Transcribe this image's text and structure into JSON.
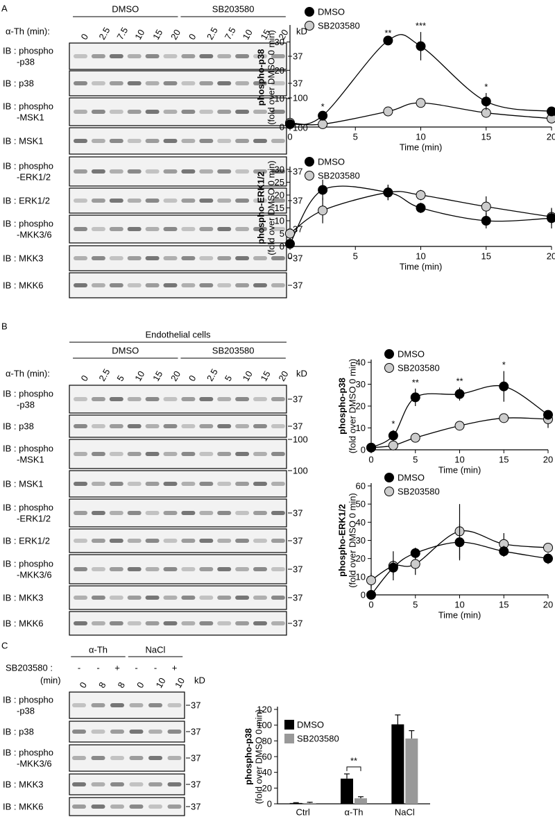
{
  "figure": {
    "panels": [
      {
        "letter": "A",
        "groups": [
          "DMSO",
          "SB203580"
        ],
        "time_label": "α-Th (min):",
        "kd_label": "kD",
        "lanes": [
          "0",
          "2.5",
          "7.5",
          "10",
          "15",
          "20",
          "0",
          "2.5",
          "7.5",
          "10",
          "15",
          "20"
        ],
        "rows": [
          {
            "label": [
              "IB : phospho",
              "-p38"
            ],
            "marker": "37"
          },
          {
            "label": [
              "IB : p38"
            ],
            "marker": "37"
          },
          {
            "label": [
              "IB : phospho",
              "-MSK1"
            ],
            "marker": "100"
          },
          {
            "label": [
              "IB : MSK1"
            ],
            "marker": "100"
          },
          {
            "label": [
              "IB : phospho",
              "-ERK1/2"
            ],
            "marker": "37"
          },
          {
            "label": [
              "IB : ERK1/2"
            ],
            "marker": "37"
          },
          {
            "label": [
              "IB : phospho",
              "-MKK3/6"
            ],
            "marker": "37"
          },
          {
            "label": [
              "IB : MKK3"
            ],
            "marker": "37"
          },
          {
            "label": [
              "IB : MKK6"
            ],
            "marker": "37"
          }
        ]
      },
      {
        "letter": "B",
        "header": "Endothelial cells",
        "groups": [
          "DMSO",
          "SB203580"
        ],
        "time_label": "α-Th (min):",
        "kd_label": "kD",
        "lanes": [
          "0",
          "2.5",
          "5",
          "10",
          "15",
          "20",
          "0",
          "2.5",
          "5",
          "10",
          "15",
          "20"
        ],
        "rows": [
          {
            "label": [
              "IB : phospho",
              "-p38"
            ],
            "marker": "37"
          },
          {
            "label": [
              "IB : p38"
            ],
            "marker": "37"
          },
          {
            "label": [
              "IB : phospho",
              "-MSK1"
            ],
            "marker": "100"
          },
          {
            "label": [
              "IB : MSK1"
            ],
            "marker": "100"
          },
          {
            "label": [
              "IB : phospho",
              "-ERK1/2"
            ],
            "marker": "37"
          },
          {
            "label": [
              "IB : ERK1/2"
            ],
            "marker": "37"
          },
          {
            "label": [
              "IB : phospho",
              "-MKK3/6"
            ],
            "marker": "37"
          },
          {
            "label": [
              "IB : MKK3"
            ],
            "marker": "37"
          },
          {
            "label": [
              "IB : MKK6"
            ],
            "marker": "37"
          }
        ]
      },
      {
        "letter": "C",
        "groups": [
          "α-Th",
          "NaCl"
        ],
        "treatment_label": "SB203580 :",
        "time_label": "(min)",
        "kd_label": "kD",
        "treatment": [
          "-",
          "-",
          "+",
          "-",
          "-",
          "+"
        ],
        "lanes": [
          "0",
          "8",
          "8",
          "0",
          "10",
          "10"
        ],
        "rows": [
          {
            "label": [
              "IB : phospho",
              "-p38"
            ],
            "marker": "37"
          },
          {
            "label": [
              "IB : p38"
            ],
            "marker": "37"
          },
          {
            "label": [
              "IB : phospho",
              "-MKK3/6"
            ],
            "marker": "37"
          },
          {
            "label": [
              "IB : MKK3"
            ],
            "marker": "37"
          },
          {
            "label": [
              "IB : MKK6"
            ],
            "marker": "37"
          }
        ]
      }
    ]
  },
  "chart_data": [
    {
      "type": "line",
      "ylabel": "phospho-p38",
      "ylabel_note": "(fold over DMSO 0 min)",
      "xlabel": "Time (min)",
      "x": [
        0,
        2.5,
        7.5,
        10,
        15,
        20
      ],
      "xlim": [
        0,
        20
      ],
      "xticks": [
        0,
        5,
        10,
        15,
        20
      ],
      "ylim": [
        0,
        35
      ],
      "yticks": [
        0,
        10,
        20,
        30
      ],
      "legend": "upper left",
      "series": [
        {
          "name": "DMSO",
          "color": "#000000",
          "values": [
            1,
            4,
            30.5,
            28.5,
            9,
            5.5
          ],
          "errors": [
            0.5,
            1,
            0.5,
            5,
            3,
            0.5
          ]
        },
        {
          "name": "SB203580",
          "color": "#cccccc",
          "values": [
            1.5,
            1,
            5.5,
            8.5,
            5,
            3
          ]
        }
      ],
      "annotations": [
        {
          "text": "*",
          "x": 2.5
        },
        {
          "text": "**",
          "x": 7.5
        },
        {
          "text": "***",
          "x": 10
        },
        {
          "text": "*",
          "x": 15
        }
      ]
    },
    {
      "type": "line",
      "ylabel": "phospho-ERK1/2",
      "ylabel_note": "(fold over DMSO 0 min)",
      "xlabel": "Time (min)",
      "x": [
        0,
        2.5,
        7.5,
        10,
        15,
        20
      ],
      "xlim": [
        0,
        20
      ],
      "xticks": [
        0,
        5,
        10,
        15,
        20
      ],
      "ylim": [
        0,
        30
      ],
      "yticks": [
        0,
        5,
        10,
        15,
        20,
        25,
        30
      ],
      "legend": "upper left",
      "series": [
        {
          "name": "DMSO",
          "color": "#000000",
          "values": [
            1,
            22,
            21,
            15,
            10,
            11
          ],
          "errors": [
            1,
            4,
            3,
            2,
            3,
            4
          ]
        },
        {
          "name": "SB203580",
          "color": "#cccccc",
          "values": [
            5,
            14,
            21,
            20,
            15.5,
            11.5
          ],
          "errors": [
            2,
            5,
            3,
            2,
            4,
            3
          ]
        }
      ]
    },
    {
      "type": "line",
      "ylabel": "phospho-p38",
      "ylabel_note": "(fold over DMSO 0 min)",
      "xlabel": "Time (min)",
      "x": [
        0,
        2.5,
        5,
        10,
        15,
        20
      ],
      "xlim": [
        0,
        20
      ],
      "xticks": [
        0,
        5,
        10,
        15,
        20
      ],
      "ylim": [
        0,
        40
      ],
      "yticks": [
        0,
        10,
        20,
        30,
        40
      ],
      "legend": "upper left",
      "series": [
        {
          "name": "DMSO",
          "color": "#000000",
          "values": [
            1,
            6.5,
            24,
            25.5,
            29,
            16
          ],
          "errors": [
            0.5,
            2.5,
            4,
            3,
            7,
            2
          ]
        },
        {
          "name": "SB203580",
          "color": "#cccccc",
          "values": [
            1,
            2,
            5.5,
            11,
            14.5,
            14
          ],
          "errors": [
            0.5,
            0.5,
            1,
            1,
            1,
            4
          ]
        }
      ],
      "annotations": [
        {
          "text": "*",
          "x": 2.5
        },
        {
          "text": "**",
          "x": 5
        },
        {
          "text": "**",
          "x": 10
        },
        {
          "text": "*",
          "x": 15
        }
      ]
    },
    {
      "type": "line",
      "ylabel": "phospho-ERK1/2",
      "ylabel_note": "(fold over DMSO 0 min)",
      "xlabel": "Time (min)",
      "x": [
        0,
        2.5,
        5,
        10,
        15,
        20
      ],
      "xlim": [
        0,
        20
      ],
      "xticks": [
        0,
        5,
        10,
        15,
        20
      ],
      "ylim": [
        0,
        60
      ],
      "yticks": [
        0,
        10,
        20,
        30,
        40,
        50,
        60
      ],
      "legend": "upper left",
      "series": [
        {
          "name": "DMSO",
          "color": "#000000",
          "values": [
            0,
            15,
            23,
            29,
            24,
            20
          ],
          "errors": [
            0,
            4,
            3,
            10,
            3,
            3
          ]
        },
        {
          "name": "SB203580",
          "color": "#cccccc",
          "values": [
            8,
            16,
            17,
            35,
            28,
            26
          ],
          "errors": [
            4,
            8,
            6,
            15,
            6,
            2
          ]
        }
      ]
    },
    {
      "type": "bar",
      "ylabel": "phospho-p38",
      "ylabel_note": "(fold over DMSO 0 min)",
      "categories": [
        "Ctrl",
        "α-Th",
        "NaCl"
      ],
      "ylim": [
        0,
        120
      ],
      "yticks": [
        0,
        20,
        40,
        60,
        80,
        100,
        120
      ],
      "legend": "upper left",
      "series": [
        {
          "name": "DMSO",
          "color": "#000000",
          "values": [
            1,
            32,
            101
          ],
          "errors": [
            0.5,
            6,
            12
          ]
        },
        {
          "name": "SB203580",
          "color": "#999999",
          "values": [
            1,
            7,
            83
          ],
          "errors": [
            1,
            2,
            10
          ]
        }
      ],
      "annotations": [
        {
          "text": "**",
          "x": "α-Th"
        }
      ]
    }
  ]
}
